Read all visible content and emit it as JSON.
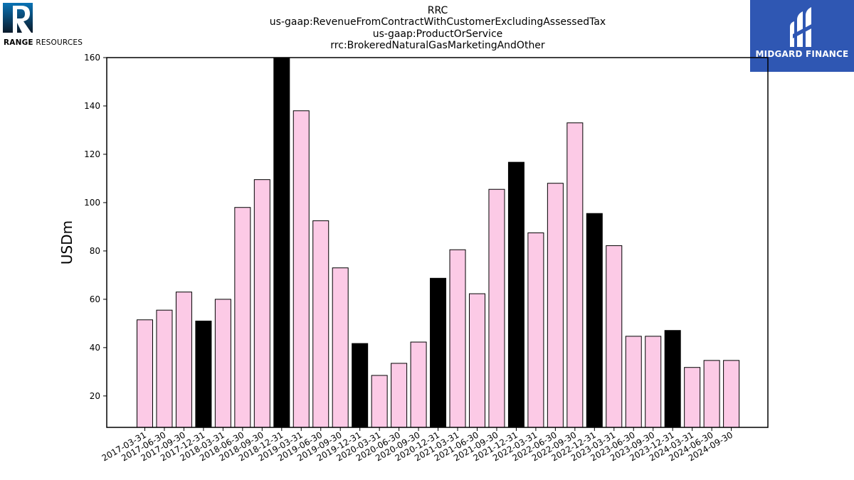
{
  "logos": {
    "left": {
      "company_bold": "RANGE",
      "company_rest": " RESOURCES",
      "icon": "range-r-logo-icon",
      "colors": [
        "#0a73b5",
        "#000000"
      ]
    },
    "right": {
      "brand": "MIDGARD FINANCE",
      "icon": "midgard-m-logo-icon",
      "background": "#2f57b3"
    }
  },
  "header": {
    "lines": [
      "RRC",
      "us-gaap:RevenueFromContractWithCustomerExcludingAssessedTax",
      "us-gaap:ProductOrService",
      "rrc:BrokeredNaturalGasMarketingAndOther"
    ]
  },
  "chart_data": {
    "type": "bar",
    "title": "RRC\nus-gaap:RevenueFromContractWithCustomerExcludingAssessedTax\nus-gaap:ProductOrService\nrrc:BrokeredNaturalGasMarketingAndOther",
    "xlabel": "",
    "ylabel": "USDm",
    "ylim": [
      7,
      160
    ],
    "yticks": [
      20,
      40,
      60,
      80,
      100,
      120,
      140,
      160
    ],
    "grid": false,
    "colors": {
      "quarter": "#fccae6",
      "year_end": "#000000",
      "edge": "#000000"
    },
    "categories": [
      "2017-03-31",
      "2017-06-30",
      "2017-09-30",
      "2017-12-31",
      "2018-03-31",
      "2018-06-30",
      "2018-09-30",
      "2018-12-31",
      "2019-03-31",
      "2019-06-30",
      "2019-09-30",
      "2019-12-31",
      "2020-03-31",
      "2020-06-30",
      "2020-09-30",
      "2020-12-31",
      "2021-03-31",
      "2021-06-30",
      "2021-09-30",
      "2021-12-31",
      "2022-03-31",
      "2022-06-30",
      "2022-09-30",
      "2022-12-31",
      "2023-03-31",
      "2023-06-30",
      "2023-09-30",
      "2023-12-31",
      "2024-03-31",
      "2024-06-30",
      "2024-09-30"
    ],
    "values": [
      51.5,
      55.5,
      63,
      51,
      60,
      98,
      109.5,
      160,
      138,
      92.5,
      73,
      41.7,
      28.5,
      33.5,
      42.3,
      68.7,
      80.5,
      62.3,
      105.5,
      116.7,
      87.5,
      108,
      133,
      95.5,
      82.2,
      44.7,
      44.7,
      47.1,
      31.8,
      34.7,
      34.7
    ],
    "year_end": [
      false,
      false,
      false,
      true,
      false,
      false,
      false,
      true,
      false,
      false,
      false,
      true,
      false,
      false,
      false,
      true,
      false,
      false,
      false,
      true,
      false,
      false,
      false,
      true,
      false,
      false,
      false,
      true,
      false,
      false,
      false
    ]
  }
}
